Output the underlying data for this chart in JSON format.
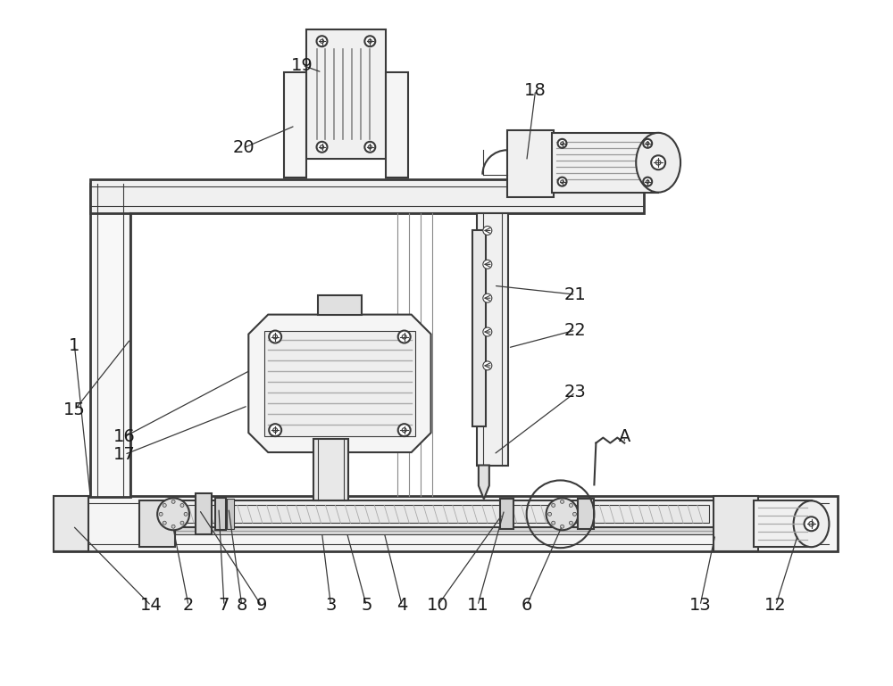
{
  "bg": "#ffffff",
  "lc": "#3a3a3a",
  "lw": 1.5,
  "lw_thin": 0.8,
  "lw_thick": 2.0
}
